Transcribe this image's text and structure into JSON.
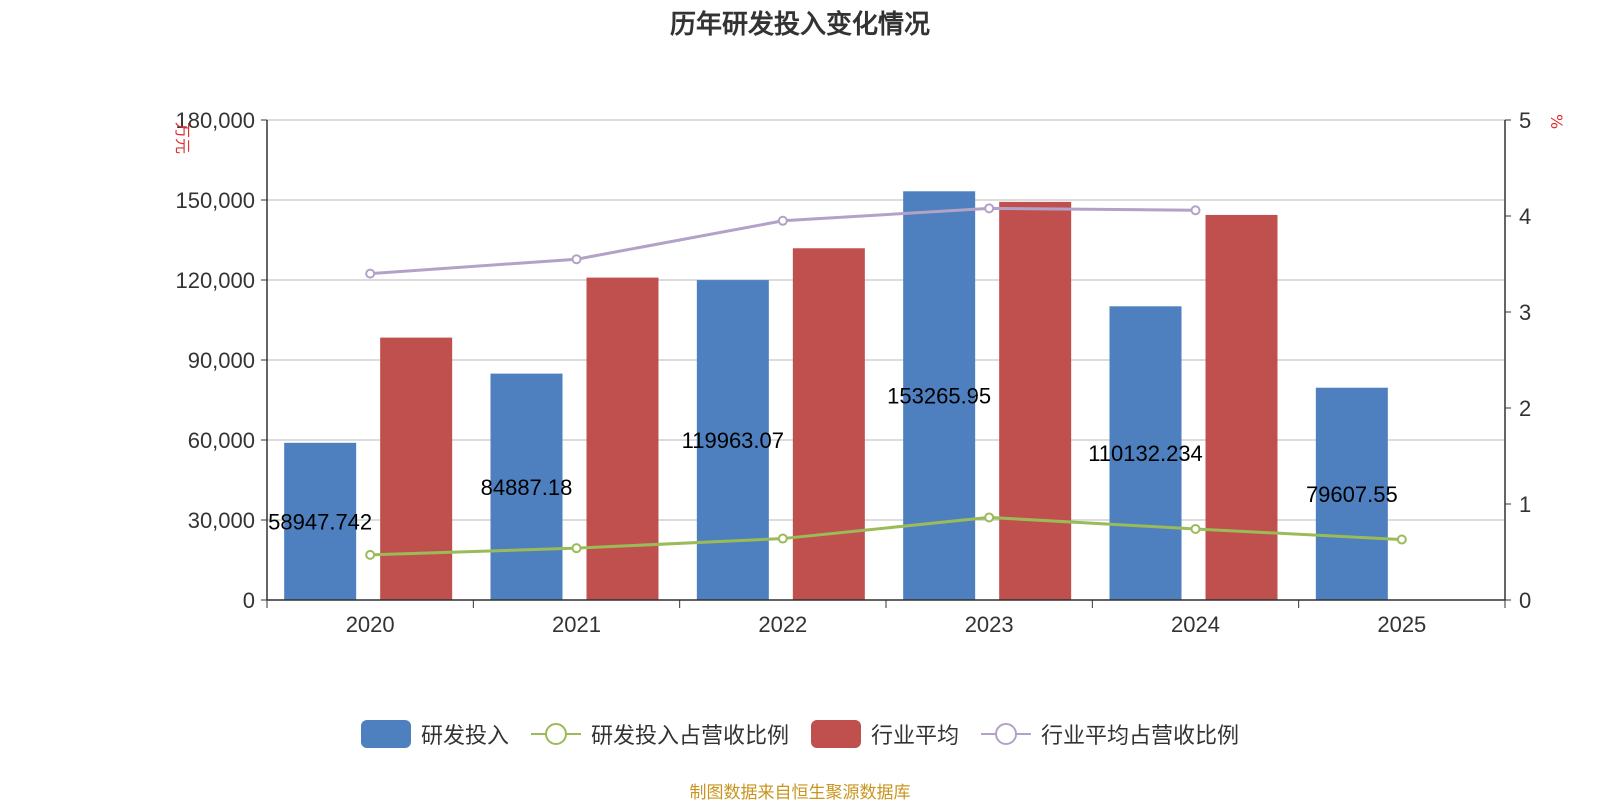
{
  "title": "历年研发投入变化情况",
  "source": "制图数据来自恒生聚源数据库",
  "chart_data": {
    "type": "bar",
    "title": "历年研发投入变化情况",
    "categories": [
      "2020",
      "2021",
      "2022",
      "2023",
      "2024",
      "2025"
    ],
    "y_left": {
      "label": "万元",
      "ylim": [
        0,
        180000
      ],
      "ticks": [
        "0",
        "30,000",
        "60,000",
        "90,000",
        "120,000",
        "150,000",
        "180,000"
      ]
    },
    "y_right": {
      "label": "%",
      "ylim": [
        0,
        5
      ],
      "ticks": [
        "0",
        "1",
        "2",
        "3",
        "4",
        "5"
      ]
    },
    "grid": true,
    "legend_position": "bottom",
    "series": [
      {
        "name": "研发投入",
        "type": "bar",
        "axis": "left",
        "color": "#4e7fbf",
        "values": [
          58947.742,
          84887.18,
          119963.07,
          153265.95,
          110132.234,
          79607.55
        ],
        "labels": [
          "58947.742",
          "84887.18",
          "119963.07",
          "153265.95",
          "110132.234",
          "79607.55"
        ]
      },
      {
        "name": "研发投入占营收比例",
        "type": "line",
        "axis": "right",
        "color": "#9bbb59",
        "values": [
          0.47,
          0.54,
          0.64,
          0.86,
          0.74,
          0.63
        ]
      },
      {
        "name": "行业平均",
        "type": "bar",
        "axis": "left",
        "color": "#c0504d",
        "values": [
          98400,
          120900,
          131900,
          149300,
          144400,
          null
        ]
      },
      {
        "name": "行业平均占营收比例",
        "type": "line",
        "axis": "right",
        "color": "#b3a2c7",
        "values": [
          3.4,
          3.55,
          3.95,
          4.08,
          4.06,
          null
        ]
      }
    ]
  }
}
